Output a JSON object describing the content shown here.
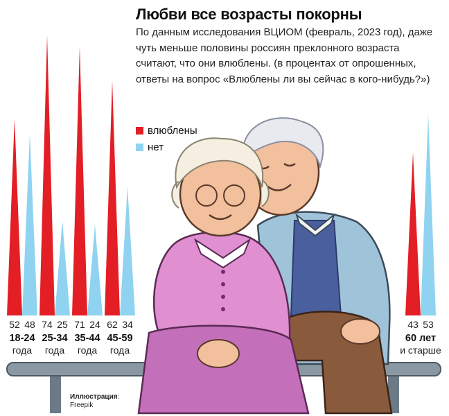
{
  "header": {
    "title": "Любви все возрасты покорны",
    "subtitle": "По данным исследования ВЦИОМ (февраль, 2023 год), даже чуть меньше половины россиян преклонного возраста считают, что они влюблены. (в процентах от опрошенных, ответы на вопрос «Влюблены ли вы сейчас в кого-нибудь?»)"
  },
  "legend": {
    "items": [
      {
        "label": "влюблены",
        "color": "#e31e24"
      },
      {
        "label": "нет",
        "color": "#8fd3f0"
      }
    ]
  },
  "credit": {
    "label": "Иллюстрация",
    "source": "Freepik"
  },
  "chart_data": {
    "type": "bar",
    "categories": [
      {
        "range": "18-24",
        "unit": "года"
      },
      {
        "range": "25-34",
        "unit": "года"
      },
      {
        "range": "35-44",
        "unit": "года"
      },
      {
        "range": "45-59",
        "unit": "года"
      },
      {
        "range": "60 лет",
        "unit": "и старше"
      }
    ],
    "series": [
      {
        "name": "влюблены",
        "color": "#e31e24",
        "values": [
          52,
          74,
          71,
          62,
          43
        ]
      },
      {
        "name": "нет",
        "color": "#8fd3f0",
        "values": [
          48,
          25,
          24,
          34,
          53
        ]
      }
    ],
    "ylim": [
      0,
      80
    ]
  }
}
